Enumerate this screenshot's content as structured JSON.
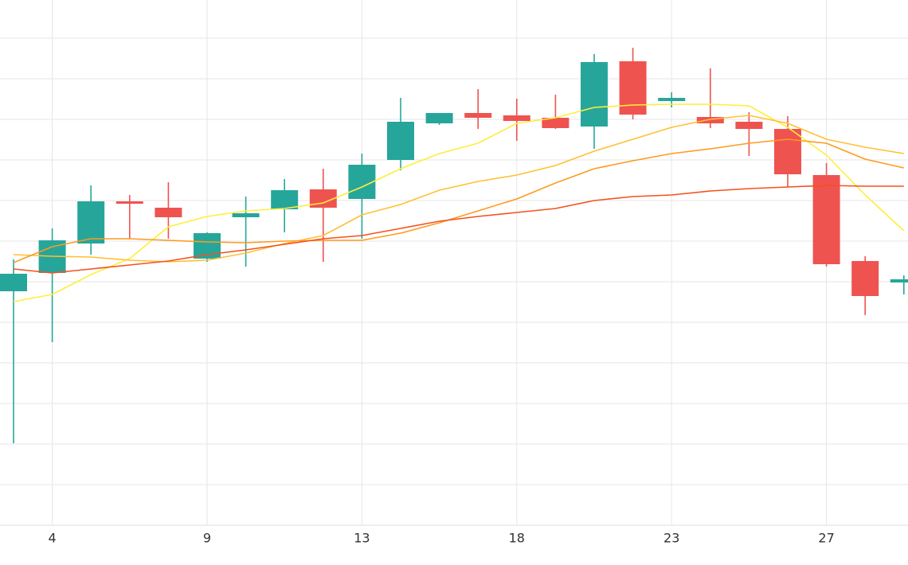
{
  "chart_data": {
    "type": "candlestick",
    "categories": [
      null,
      "4",
      null,
      null,
      null,
      "9",
      null,
      null,
      null,
      "13",
      null,
      null,
      null,
      "18",
      null,
      null,
      null,
      "23",
      null,
      null,
      null,
      "27",
      null,
      null
    ],
    "open": [
      294,
      317,
      354,
      407,
      399,
      335,
      387,
      397,
      422,
      410,
      459,
      505,
      518,
      515,
      512,
      501,
      583,
      533,
      513,
      507,
      498,
      440,
      332,
      305
    ],
    "high": [
      334,
      373,
      427,
      415,
      431,
      368,
      413,
      435,
      448,
      467,
      537,
      518,
      548,
      536,
      541,
      592,
      600,
      544,
      574,
      519,
      514,
      455,
      338,
      314
    ],
    "low": [
      103,
      230,
      340,
      360,
      360,
      331,
      325,
      368,
      331,
      360,
      446,
      503,
      498,
      483,
      498,
      473,
      510,
      525,
      499,
      464,
      425,
      325,
      264,
      290
    ],
    "close": [
      316,
      358,
      407,
      404,
      387,
      367,
      392,
      421,
      399,
      453,
      507,
      518,
      512,
      508,
      499,
      582,
      516,
      537,
      505,
      498,
      441,
      328,
      288,
      309
    ],
    "up_color": "#26a69a",
    "down_color": "#ef5350",
    "lines": [
      {
        "color": "#ffee3a",
        "values": [
          281,
          290,
          315,
          335,
          375,
          388,
          395,
          398,
          405,
          425,
          448,
          467,
          480,
          505,
          512,
          525,
          528,
          529,
          529,
          527,
          500,
          465,
          415,
          370
        ]
      },
      {
        "color": "#ffc034",
        "values": [
          340,
          338,
          337,
          333,
          331,
          333,
          342,
          354,
          364,
          390,
          403,
          421,
          432,
          440,
          452,
          470,
          485,
          500,
          510,
          515,
          505,
          485,
          475,
          467
        ]
      },
      {
        "color": "#ff9a1f",
        "values": [
          330,
          350,
          360,
          360,
          358,
          356,
          355,
          357,
          358,
          358,
          367,
          380,
          395,
          410,
          430,
          448,
          458,
          467,
          473,
          480,
          485,
          480,
          460,
          449
        ]
      },
      {
        "color": "#f4511e",
        "values": [
          322,
          317,
          322,
          327,
          332,
          340,
          346,
          353,
          360,
          364,
          373,
          382,
          388,
          393,
          398,
          408,
          413,
          415,
          420,
          423,
          425,
          427,
          426,
          426
        ]
      }
    ],
    "ylim": [
      0,
      660
    ],
    "ygrid": [
      51,
      102,
      153,
      204,
      255,
      306,
      357,
      408,
      459,
      510,
      561,
      612
    ],
    "grid": true
  }
}
